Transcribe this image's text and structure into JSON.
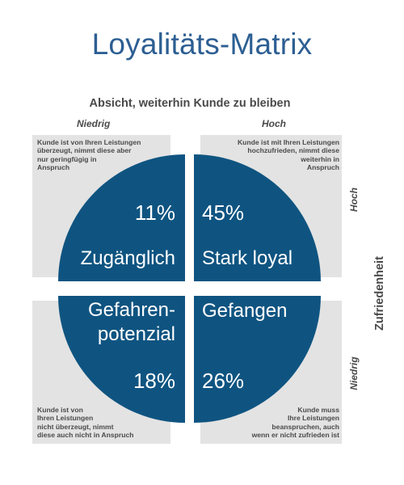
{
  "title": "Loyalitäts-Matrix",
  "column_axis": {
    "title": "Absicht, weiterhin Kunde zu bleiben",
    "low": "Niedrig",
    "high": "Hoch"
  },
  "row_axis": {
    "title": "Zufriedenheit",
    "high": "Hoch",
    "low": "Niedrig"
  },
  "colors": {
    "title": "#2d5f93",
    "quadrant_fill": "#0f5481",
    "panel_fill": "#e3e3e3",
    "text": "#4a4a4a"
  },
  "quadrants": {
    "top_left": {
      "percent": "11%",
      "name": "Zugänglich",
      "description": [
        "Kunde ist von Ihren Leistungen",
        "überzeugt, nimmt diese aber",
        "nur geringfügig in",
        "Anspruch"
      ]
    },
    "top_right": {
      "percent": "45%",
      "name": "Stark loyal",
      "description": [
        "Kunde ist mit Ihren Leistungen",
        "hochzufrieden, nimmt diese",
        "weiterhin in",
        "Anspruch"
      ]
    },
    "bottom_left": {
      "percent": "18%",
      "name_lines": [
        "Gefahren-",
        "potenzial"
      ],
      "description": [
        "Kunde ist von",
        "Ihren Leistungen",
        "nicht überzeugt, nimmt",
        "diese auch nicht in Anspruch"
      ]
    },
    "bottom_right": {
      "percent": "26%",
      "name": "Gefangen",
      "description": [
        "Kunde muss",
        "Ihre Leistungen",
        "beanspruchen, auch",
        "wenn er nicht zufrieden ist"
      ]
    }
  }
}
